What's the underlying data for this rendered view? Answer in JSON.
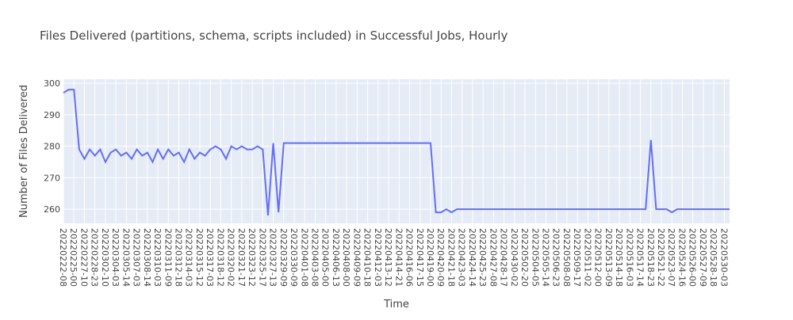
{
  "chart_data": {
    "type": "line",
    "title": "Files Delivered (partitions, schema, scripts included) in Successful Jobs, Hourly",
    "x_label": "Time",
    "y_label": "Number of Files Delivered",
    "color": "#636efa",
    "grid": true,
    "ylim": [
      255.5,
      301.3
    ],
    "yticks": [
      260,
      270,
      280,
      290,
      300
    ],
    "categories": [
      "20220222-08",
      null,
      "20220225-00",
      null,
      "20220227-10",
      null,
      "20220228-23",
      null,
      "20220302-10",
      null,
      "20220304-03",
      null,
      "20220305-14",
      null,
      "20220307-03",
      null,
      "20220308-14",
      null,
      "20220310-03",
      null,
      "20220311-09",
      null,
      "20220312-18",
      null,
      "20220314-03",
      null,
      "20220315-12",
      null,
      "20220317-03",
      null,
      "20220318-12",
      null,
      "20220320-02",
      null,
      "20220321-17",
      null,
      "20220323-12",
      null,
      "20220325-17",
      null,
      "20220327-13",
      null,
      "20220329-09",
      null,
      "20220330-09",
      null,
      "20220401-08",
      null,
      "20220403-08",
      null,
      "20220405-00",
      null,
      "20220406-13",
      null,
      "20220408-00",
      null,
      "20220409-09",
      null,
      "20220410-18",
      null,
      "20220412-03",
      null,
      "20220413-12",
      null,
      "20220414-21",
      null,
      "20220416-06",
      null,
      "20220417-15",
      null,
      "20220419-00",
      null,
      "20220420-09",
      null,
      "20220421-18",
      null,
      "20220423-03",
      null,
      "20220424-14",
      null,
      "20220425-23",
      null,
      "20220427-08",
      null,
      "20220428-17",
      null,
      "20220430-02",
      null,
      "20220502-20",
      null,
      "20220504-05",
      null,
      "20220505-14",
      null,
      "20220506-23",
      null,
      "20220508-08",
      null,
      "20220509-17",
      null,
      "20220511-02",
      null,
      "20220512-00",
      null,
      "20220513-09",
      null,
      "20220514-18",
      null,
      "20220516-03",
      null,
      "20220517-14",
      null,
      "20220518-23",
      null,
      "20220521-22",
      null,
      "20220523-07",
      null,
      "20220524-16",
      null,
      "20220526-00",
      null,
      "20220527-09",
      null,
      "20220528-18",
      null,
      "20220530-03",
      null
    ],
    "values": [
      297,
      298,
      298,
      279,
      276,
      279,
      277,
      279,
      275,
      278,
      279,
      277,
      278,
      276,
      279,
      277,
      278,
      275,
      279,
      276,
      279,
      277,
      278,
      275,
      279,
      276,
      278,
      277,
      279,
      280,
      279,
      276,
      280,
      279,
      280,
      279,
      279,
      280,
      279,
      258,
      281,
      259,
      281,
      281,
      281,
      281,
      281,
      281,
      281,
      281,
      281,
      281,
      281,
      281,
      281,
      281,
      281,
      281,
      281,
      281,
      281,
      281,
      281,
      281,
      281,
      281,
      281,
      281,
      281,
      281,
      281,
      259,
      259,
      260,
      259,
      260,
      260,
      260,
      260,
      260,
      260,
      260,
      260,
      260,
      260,
      260,
      260,
      260,
      260,
      260,
      260,
      260,
      260,
      260,
      260,
      260,
      260,
      260,
      260,
      260,
      260,
      260,
      260,
      260,
      260,
      260,
      260,
      260,
      260,
      260,
      260,
      260,
      282,
      260,
      260,
      260,
      259,
      260,
      260,
      260,
      260,
      260,
      260,
      260,
      260,
      260,
      260,
      260
    ]
  }
}
